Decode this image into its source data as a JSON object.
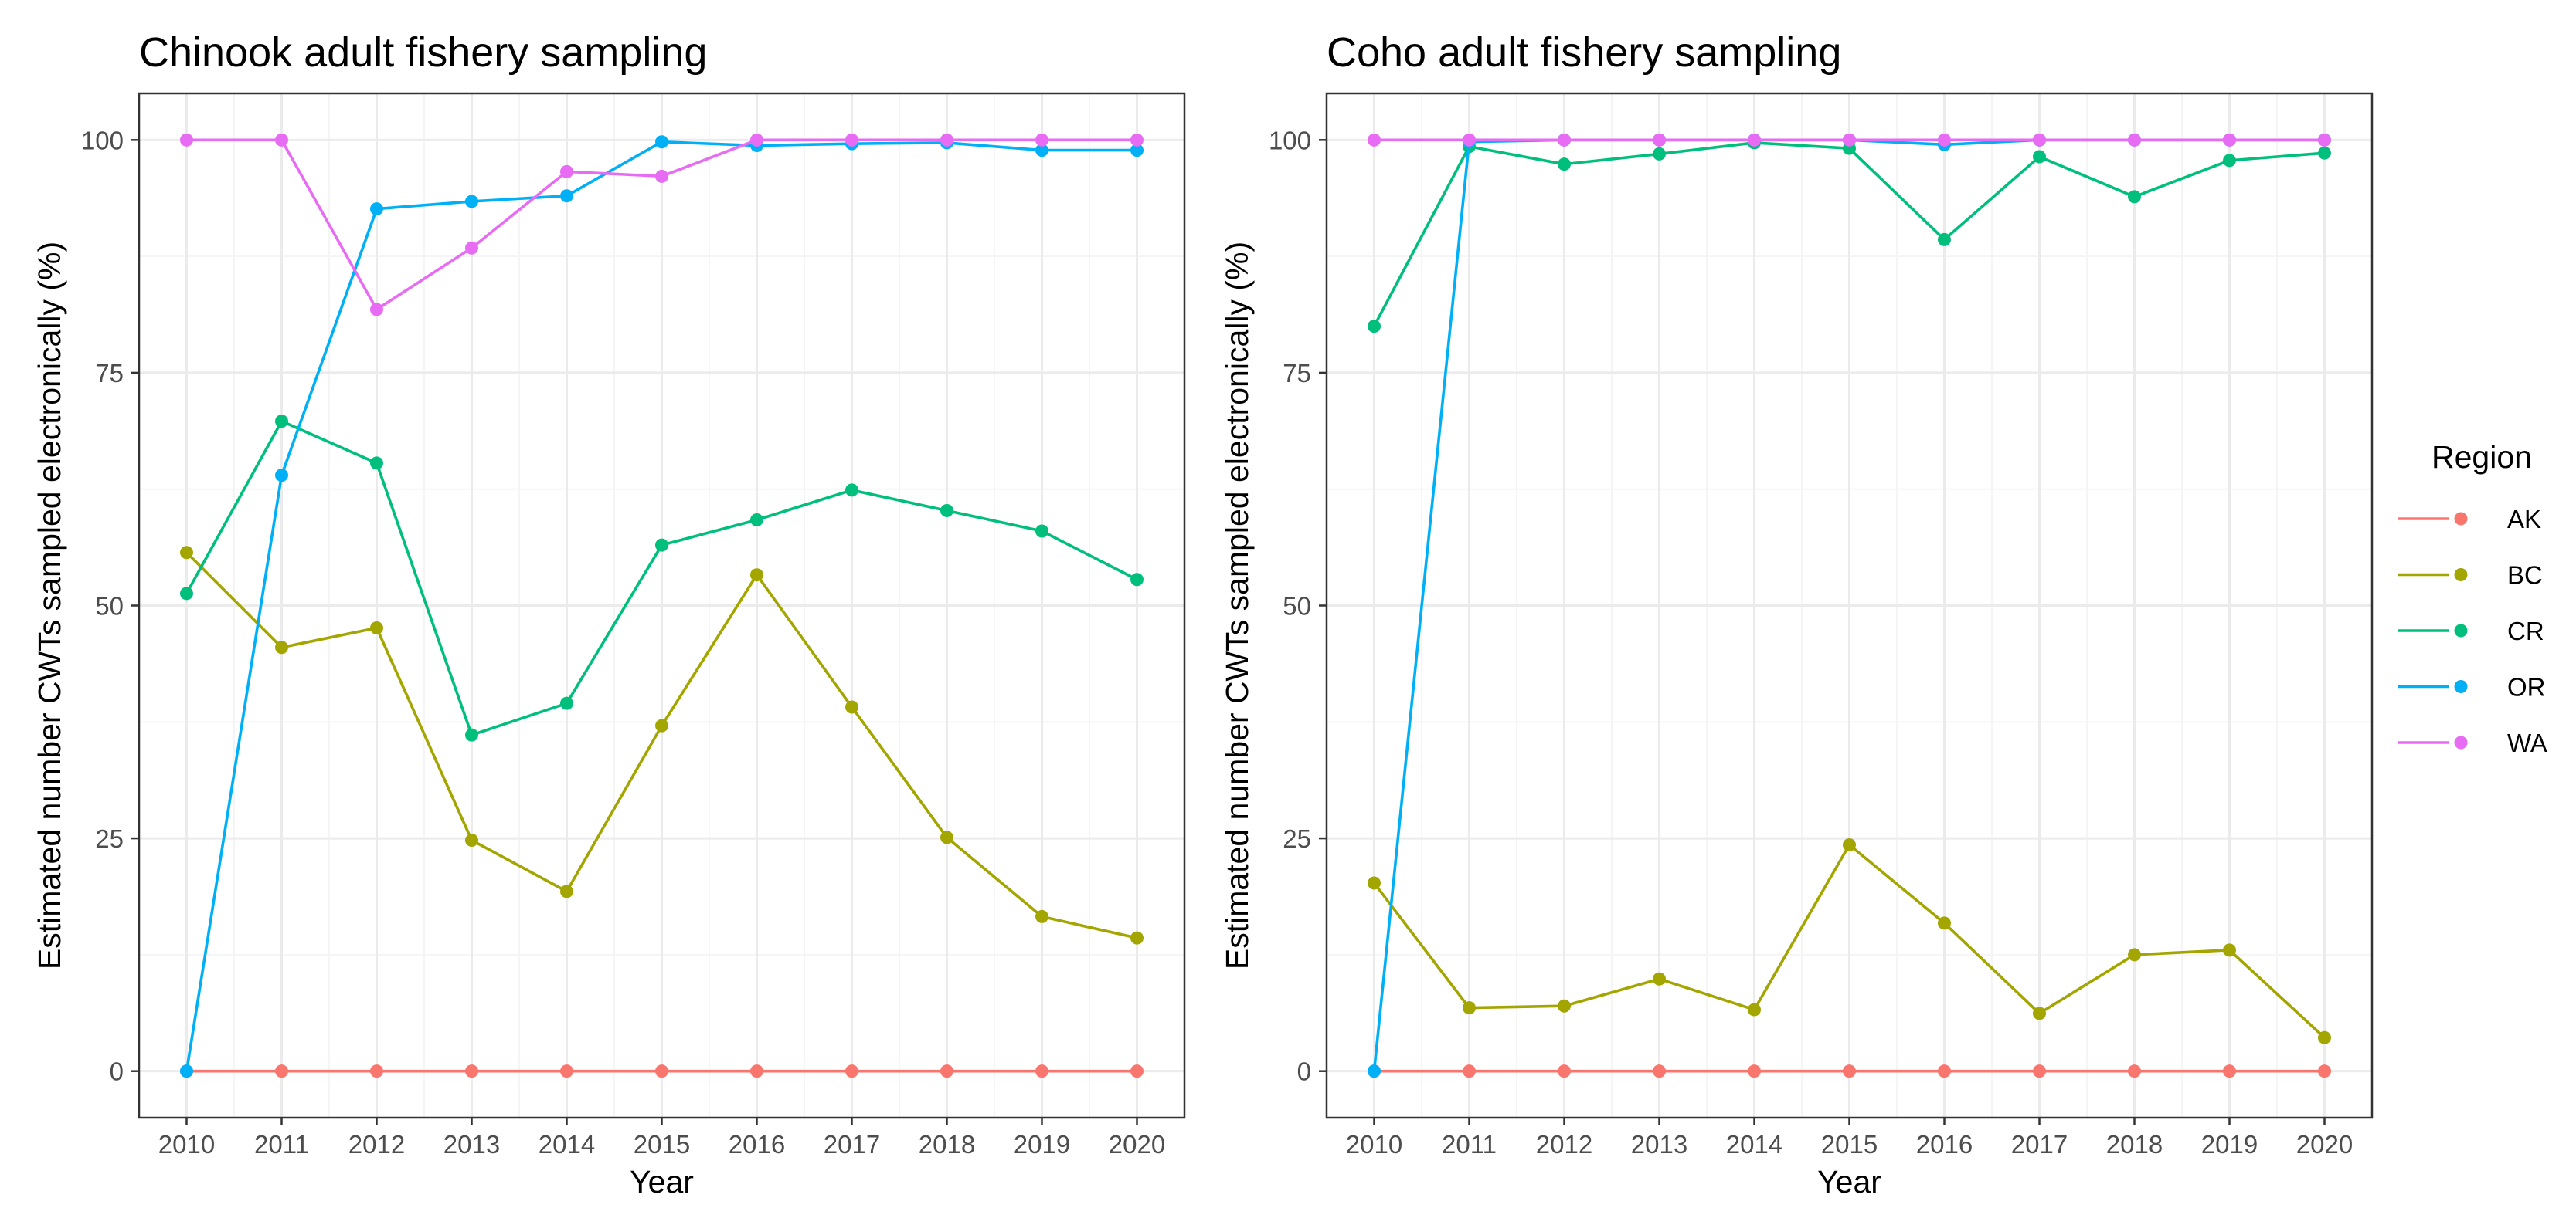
{
  "chart_data": [
    {
      "type": "line",
      "title": "Chinook adult fishery sampling",
      "xlabel": "Year",
      "ylabel": "Estimated number CWTs sampled electronically (%)",
      "x": [
        2010,
        2011,
        2012,
        2013,
        2014,
        2015,
        2016,
        2017,
        2018,
        2019,
        2020
      ],
      "xlim": [
        2009.5,
        2020.5
      ],
      "ylim": [
        -5,
        105
      ],
      "yticks": [
        0,
        25,
        50,
        75,
        100
      ],
      "grid": true,
      "series": [
        {
          "name": "AK",
          "values": [
            0,
            0,
            0,
            0,
            0,
            0,
            0,
            0,
            0,
            0,
            0
          ]
        },
        {
          "name": "BC",
          "values": [
            55.7,
            45.5,
            47.6,
            24.8,
            19.3,
            37.1,
            53.3,
            39.1,
            25.1,
            16.6,
            14.3
          ]
        },
        {
          "name": "CR",
          "values": [
            51.3,
            69.8,
            65.3,
            36.1,
            39.5,
            56.5,
            59.2,
            62.4,
            60.2,
            58.0,
            52.8
          ]
        },
        {
          "name": "OR",
          "values": [
            0,
            64.0,
            92.6,
            93.4,
            94.0,
            99.8,
            99.4,
            99.6,
            99.7,
            98.9,
            98.9
          ]
        },
        {
          "name": "WA",
          "values": [
            100,
            100,
            81.8,
            88.4,
            96.6,
            96.1,
            100,
            100,
            100,
            100,
            100
          ]
        }
      ]
    },
    {
      "type": "line",
      "title": "Coho adult fishery sampling",
      "xlabel": "Year",
      "ylabel": "Estimated number CWTs sampled electronically (%)",
      "x": [
        2010,
        2011,
        2012,
        2013,
        2014,
        2015,
        2016,
        2017,
        2018,
        2019,
        2020
      ],
      "xlim": [
        2009.5,
        2020.5
      ],
      "ylim": [
        -5,
        105
      ],
      "yticks": [
        0,
        25,
        50,
        75,
        100
      ],
      "grid": true,
      "series": [
        {
          "name": "AK",
          "values": [
            0,
            0,
            0,
            0,
            0,
            0,
            0,
            0,
            0,
            0,
            0
          ]
        },
        {
          "name": "BC",
          "values": [
            20.2,
            6.8,
            7.0,
            9.9,
            6.6,
            24.3,
            15.9,
            6.2,
            12.5,
            13.0,
            3.6
          ]
        },
        {
          "name": "CR",
          "values": [
            80.0,
            99.3,
            97.4,
            98.5,
            99.7,
            99.1,
            89.3,
            98.2,
            93.9,
            97.8,
            98.6
          ]
        },
        {
          "name": "OR",
          "values": [
            0,
            99.8,
            100,
            100,
            100,
            100,
            99.5,
            100,
            100,
            100,
            100
          ]
        },
        {
          "name": "WA",
          "values": [
            100,
            100,
            100,
            100,
            100,
            100,
            100,
            100,
            100,
            100,
            100
          ]
        }
      ]
    }
  ],
  "legend": {
    "title": "Region",
    "position": "right",
    "items": [
      {
        "label": "AK",
        "color": "#F8766D"
      },
      {
        "label": "BC",
        "color": "#A3A500"
      },
      {
        "label": "CR",
        "color": "#00BF7D"
      },
      {
        "label": "OR",
        "color": "#00B0F6"
      },
      {
        "label": "WA",
        "color": "#E76BF3"
      }
    ]
  },
  "colors": {
    "panel_border": "#333333",
    "grid_major": "#ebebeb",
    "grid_minor": "#f5f5f5",
    "tick_text": "#4d4d4d"
  }
}
